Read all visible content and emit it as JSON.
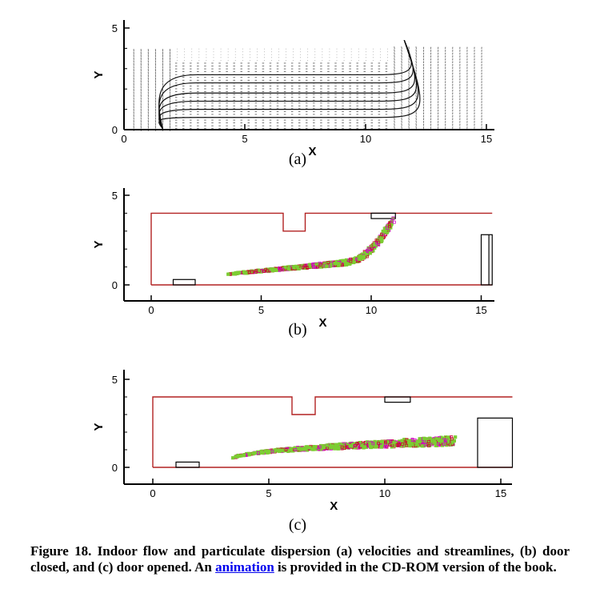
{
  "figure": {
    "caption_before_link": "Figure 18. Indoor flow and particulate dispersion (a) velocities and streamlines, (b) door closed, and (c) door opened. An",
    "link_text": "animation",
    "caption_after_link": "is provided in the CD-ROM version of the book.",
    "colors": {
      "wall": "#b22222",
      "particle_magenta": "#d400c8",
      "particle_green": "#7ccd32",
      "particle_red": "#c8102e",
      "vector": "#555555",
      "streamline": "#111111",
      "link": "#0000ee"
    }
  },
  "chart_data": [
    {
      "type": "scatter",
      "panel_label": "(a)",
      "xlabel": "X",
      "ylabel": "Y",
      "xlim": [
        0,
        15.5
      ],
      "ylim": [
        0,
        5
      ],
      "xticks": [
        0,
        5,
        10,
        15
      ],
      "yticks": [
        0,
        5
      ],
      "grid": false,
      "description_series": [
        {
          "kind": "velocity_vectors",
          "x_range": [
            0.4,
            15
          ],
          "y_range": [
            0,
            4
          ]
        },
        {
          "kind": "streamlines",
          "inlet_x": 11.5,
          "outlet_x": 1.5,
          "y_levels": [
            0.6,
            1.0,
            1.4,
            1.8,
            2.3,
            2.7
          ]
        }
      ]
    },
    {
      "type": "scatter",
      "panel_label": "(b)",
      "xlabel": "X",
      "ylabel": "Y",
      "xlim": [
        -1.2,
        15.5
      ],
      "ylim": [
        -0.8,
        5.3
      ],
      "xticks": [
        0,
        5,
        10,
        15
      ],
      "yticks": [
        0,
        5
      ],
      "grid": false,
      "room": {
        "x": [
          0,
          15.5
        ],
        "y": [
          0,
          4
        ],
        "notch_x": [
          6,
          7
        ],
        "notch_depth": 1
      },
      "inlet_box": {
        "x": [
          10,
          11.1
        ],
        "y": [
          3.7,
          4
        ]
      },
      "outlet_box": {
        "x": [
          1,
          2
        ],
        "y": [
          0,
          0.3
        ]
      },
      "door": {
        "x": [
          15,
          15.5
        ],
        "y": [
          0,
          2.8
        ]
      },
      "plume": {
        "x_start": 3.5,
        "x_end": 11,
        "y_start": 0.6,
        "shape": "curving up to inlet"
      }
    },
    {
      "type": "scatter",
      "panel_label": "(c)",
      "xlabel": "X",
      "ylabel": "Y",
      "xlim": [
        -1.2,
        15.5
      ],
      "ylim": [
        -0.8,
        5.3
      ],
      "xticks": [
        0,
        5,
        10,
        15
      ],
      "yticks": [
        0,
        5
      ],
      "grid": false,
      "room": {
        "x": [
          0,
          15.5
        ],
        "y": [
          0,
          4
        ],
        "notch_x": [
          6,
          7
        ],
        "notch_depth": 1
      },
      "inlet_box": {
        "x": [
          10,
          11.1
        ],
        "y": [
          3.7,
          4
        ]
      },
      "outlet_box": {
        "x": [
          1,
          2
        ],
        "y": [
          0,
          0.3
        ]
      },
      "door": {
        "x": [
          14,
          15.5
        ],
        "y": [
          0,
          2.8
        ]
      },
      "plume": {
        "x_start": 3.5,
        "x_end": 13,
        "y_start": 0.5,
        "shape": "horizontal spreading"
      }
    }
  ]
}
